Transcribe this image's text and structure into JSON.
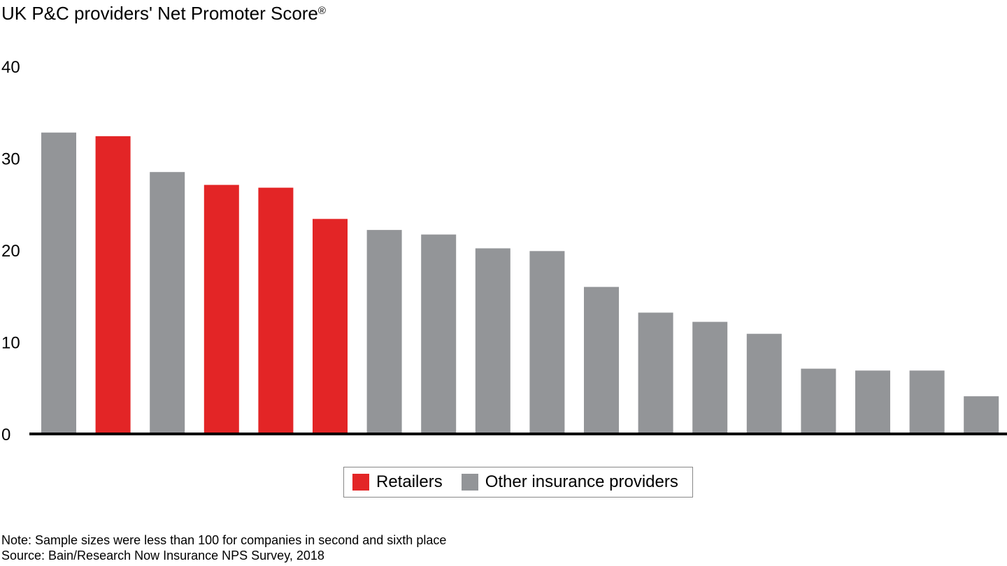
{
  "chart_data": {
    "type": "bar",
    "title": "UK P&C providers' Net Promoter Score",
    "title_mark": "®",
    "categories": [
      "",
      "",
      "",
      "",
      "",
      "",
      "",
      "",
      "",
      "",
      "",
      "",
      "",
      "",
      "",
      "",
      "",
      ""
    ],
    "values": [
      32.8,
      32.4,
      28.5,
      27.1,
      26.8,
      23.4,
      22.2,
      21.7,
      20.2,
      19.9,
      16.0,
      13.2,
      12.2,
      10.9,
      7.1,
      6.9,
      6.9,
      4.1
    ],
    "groups": [
      "Other insurance providers",
      "Retailers",
      "Other insurance providers",
      "Retailers",
      "Retailers",
      "Retailers",
      "Other insurance providers",
      "Other insurance providers",
      "Other insurance providers",
      "Other insurance providers",
      "Other insurance providers",
      "Other insurance providers",
      "Other insurance providers",
      "Other insurance providers",
      "Other insurance providers",
      "Other insurance providers",
      "Other insurance providers",
      "Other insurance providers"
    ],
    "ylim": [
      0,
      40
    ],
    "yticks": [
      "0",
      "10",
      "20",
      "30",
      "40"
    ],
    "ytick_values": [
      0,
      10,
      20,
      30,
      40
    ],
    "xlabel": "",
    "ylabel": "",
    "grid": false,
    "legend_position": "bottom-center",
    "legend": [
      {
        "label": "Retailers",
        "color": "#e32526"
      },
      {
        "label": "Other insurance providers",
        "color": "#939598"
      }
    ],
    "colors": {
      "Retailers": "#e32526",
      "Other insurance providers": "#939598",
      "axis": "#000000"
    }
  },
  "notes": {
    "note": "Note: Sample sizes were less than 100 for companies in second and sixth place",
    "source": "Source: Bain/Research Now Insurance NPS Survey, 2018"
  }
}
